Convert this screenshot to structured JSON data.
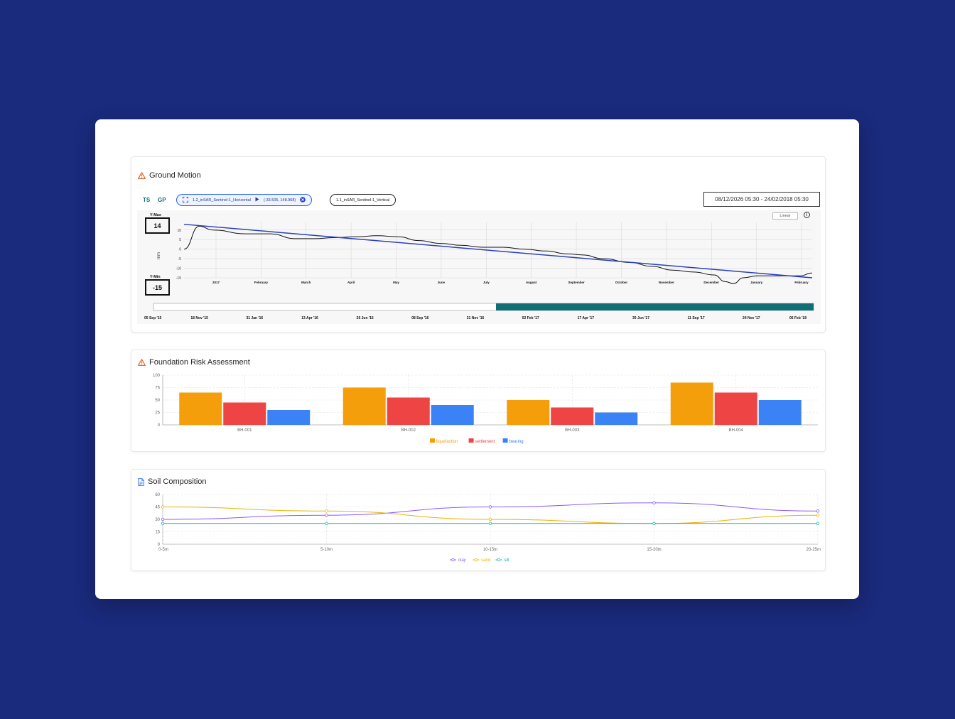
{
  "panels": {
    "ground_motion": {
      "title": "Ground Motion",
      "tabs": [
        "TS",
        "GP"
      ],
      "layer_active": {
        "name": "1.2_inSAR_Sentinel-1_Horizontal",
        "coords": "(-33.505, 148.968)"
      },
      "layer_inactive": {
        "name": "1.1_inSAR_Sentinel-1_Vertical"
      },
      "date_range": "08/12/2026 05:30 - 24/02/2018 05:30",
      "y_max_label": "Y-Max",
      "y_max": "14",
      "y_min_label": "Y-Min",
      "y_min": "-15",
      "scale_button": "Linear",
      "info_glyph": "i"
    },
    "foundation": {
      "title": "Foundation Risk Assessment"
    },
    "soil": {
      "title": "Soil Composition"
    }
  },
  "icons": {
    "ground_motion": "warning-icon",
    "foundation": "warning-icon",
    "soil": "document-icon"
  },
  "colors": {
    "background": "#1a2a7c",
    "teal": "#0f6e76",
    "trend": "#2a3fbf",
    "liquefaction": "#f59e0b",
    "settlement": "#ef4444",
    "bearing": "#3b82f6",
    "clay": "#8b5cf6",
    "sand": "#eab308",
    "silt": "#14b8a6"
  },
  "chart_data": [
    {
      "id": "ground-motion",
      "type": "line",
      "ylabel": "mm",
      "ylim": [
        -15,
        14
      ],
      "yticks": [
        10,
        5,
        0,
        -5,
        -10,
        -15
      ],
      "xticks": [
        "2017",
        "February",
        "March",
        "April",
        "May",
        "June",
        "July",
        "August",
        "September",
        "October",
        "November",
        "December",
        "January",
        "February"
      ],
      "grid": true,
      "series": [
        {
          "x": [
            "2016-12-01",
            "2016-12-12",
            "2016-12-22",
            "2017-01-15",
            "2017-02-01",
            "2017-02-20",
            "2017-03-05",
            "2017-03-20",
            "2017-04-05",
            "2017-04-20",
            "2017-05-05",
            "2017-05-20",
            "2017-06-05",
            "2017-06-20",
            "2017-07-05",
            "2017-07-20",
            "2017-08-05",
            "2017-08-20",
            "2017-09-05",
            "2017-09-15",
            "2017-10-01",
            "2017-10-20",
            "2017-11-05",
            "2017-11-20",
            "2017-12-05",
            "2017-12-20",
            "2017-12-28",
            "2018-01-03",
            "2018-01-10",
            "2018-01-20",
            "2018-02-05",
            "2018-02-20",
            "2018-03-01"
          ],
          "y": [
            0,
            12,
            10,
            8,
            8,
            5.5,
            5.5,
            6,
            6.5,
            7,
            6.5,
            4.5,
            3,
            2,
            1,
            1,
            0,
            -1,
            -2.5,
            -3,
            -5,
            -7,
            -9,
            -11,
            -12,
            -13.5,
            -17,
            -18,
            -15,
            -14,
            -14,
            -14,
            -12.5
          ]
        },
        {
          "x": [
            "2016-12-01",
            "2018-03-01"
          ],
          "y": [
            13,
            -15
          ]
        }
      ],
      "brush": {
        "labels": [
          "05 Sep '15",
          "18 Nov '15",
          "31 Jan '16",
          "13 Apr '16",
          "26 Jun '16",
          "08 Sep '16",
          "21 Nov '16",
          "02 Feb '17",
          "17 Apr '17",
          "30 Jun '17",
          "11 Sep '17",
          "24 Nov '17",
          "06 Feb '18"
        ],
        "range": [
          "2017-01-01",
          "2018-02-28"
        ]
      }
    },
    {
      "id": "foundation-risk",
      "type": "bar",
      "categories": [
        "BH-001",
        "BH-002",
        "BH-003",
        "BH-004"
      ],
      "ylim": [
        0,
        100
      ],
      "yticks": [
        0,
        25,
        50,
        75,
        100
      ],
      "grid": true,
      "legend": "bottom",
      "series": [
        {
          "name": "liquefaction",
          "values": [
            65,
            75,
            50,
            85
          ]
        },
        {
          "name": "settlement",
          "values": [
            45,
            55,
            35,
            65
          ]
        },
        {
          "name": "bearing",
          "values": [
            30,
            40,
            25,
            50
          ]
        }
      ]
    },
    {
      "id": "soil-composition",
      "type": "line",
      "categories": [
        "0-5m",
        "5-10m",
        "10-15m",
        "15-20m",
        "20-25m"
      ],
      "ylim": [
        0,
        60
      ],
      "yticks": [
        0,
        15,
        30,
        45,
        60
      ],
      "grid": true,
      "legend": "bottom",
      "series": [
        {
          "name": "clay",
          "values": [
            30,
            35,
            45,
            50,
            40
          ]
        },
        {
          "name": "sand",
          "values": [
            45,
            40,
            30,
            25,
            35
          ]
        },
        {
          "name": "silt",
          "values": [
            25,
            25,
            25,
            25,
            25
          ]
        }
      ]
    }
  ]
}
